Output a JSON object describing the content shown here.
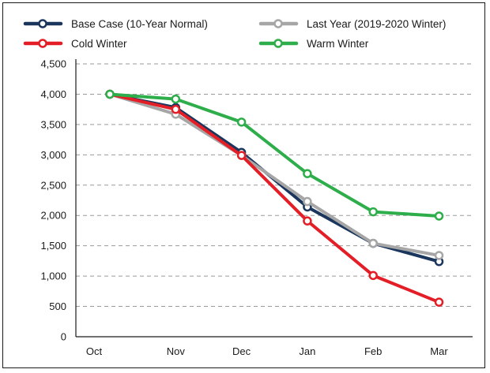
{
  "chart_data": {
    "type": "line",
    "title": "",
    "xlabel": "",
    "ylabel": "",
    "categories": [
      "Oct",
      "Nov",
      "Dec",
      "Jan",
      "Feb",
      "Mar"
    ],
    "ylim": [
      0,
      4500
    ],
    "yticks": [
      0,
      500,
      1000,
      1500,
      2000,
      2500,
      3000,
      3500,
      4000,
      4500
    ],
    "ytick_labels": [
      "0",
      "500",
      "1,000",
      "1,500",
      "2,000",
      "2,500",
      "3,000",
      "3,500",
      "4,000",
      "4,500"
    ],
    "grid": true,
    "legend_position": "top",
    "series": [
      {
        "name": "Base Case (10-Year Normal)",
        "color": "#1b365d",
        "values": [
          4000,
          3780,
          3040,
          2140,
          1540,
          1240
        ]
      },
      {
        "name": "Last Year (2019-2020 Winter)",
        "color": "#a6a6a6",
        "values": [
          4000,
          3670,
          2990,
          2230,
          1540,
          1340
        ]
      },
      {
        "name": "Cold Winter",
        "color": "#e41e26",
        "values": [
          4000,
          3750,
          2990,
          1910,
          1010,
          570
        ]
      },
      {
        "name": "Warm Winter",
        "color": "#2eae4a",
        "values": [
          4000,
          3920,
          3540,
          2690,
          2060,
          1990
        ]
      }
    ]
  }
}
